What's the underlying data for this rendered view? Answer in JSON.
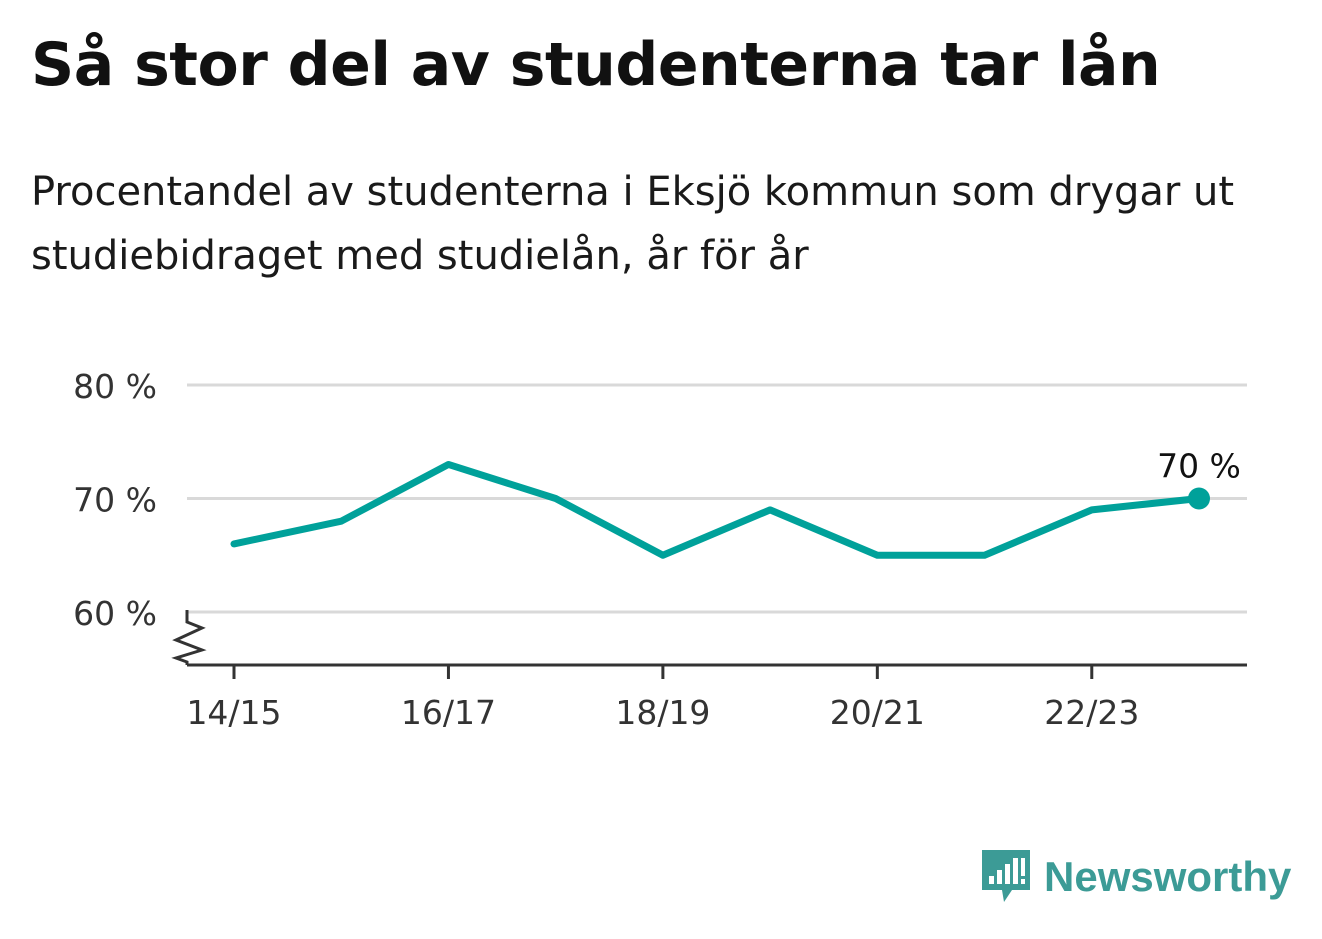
{
  "title": "Så stor del av studenterna tar lån",
  "subtitle": "Procentandel av studenterna i Eksjö kommun som drygar ut studiebidraget med studielån, år för år",
  "brand": {
    "name": "Newsworthy",
    "icon": "newsworthy-logo-icon",
    "color": "#3c9b96"
  },
  "colors": {
    "line": "#00a19a",
    "grid": "#d9d9d9",
    "axis": "#333333",
    "text": "#111111"
  },
  "chart_data": {
    "type": "line",
    "title": "Så stor del av studenterna tar lån",
    "subtitle": "Procentandel av studenterna i Eksjö kommun som drygar ut studiebidraget med studielån, år för år",
    "xlabel": "",
    "ylabel": "",
    "x": [
      "14/15",
      "15/16",
      "16/17",
      "17/18",
      "18/19",
      "19/20",
      "20/21",
      "21/22",
      "22/23",
      "23/24"
    ],
    "x_ticks": [
      "14/15",
      "16/17",
      "18/19",
      "20/21",
      "22/23"
    ],
    "series": [
      {
        "values": [
          66,
          68,
          73,
          70,
          65,
          69,
          65,
          65,
          69,
          70
        ],
        "color": "#00a19a"
      }
    ],
    "y_ticks": [
      60,
      70,
      80
    ],
    "y_tick_labels": [
      "60 %",
      "70 %",
      "80 %"
    ],
    "ylim": [
      55,
      80
    ],
    "y_axis_break": true,
    "grid": true,
    "last_point_label": "70 %"
  }
}
